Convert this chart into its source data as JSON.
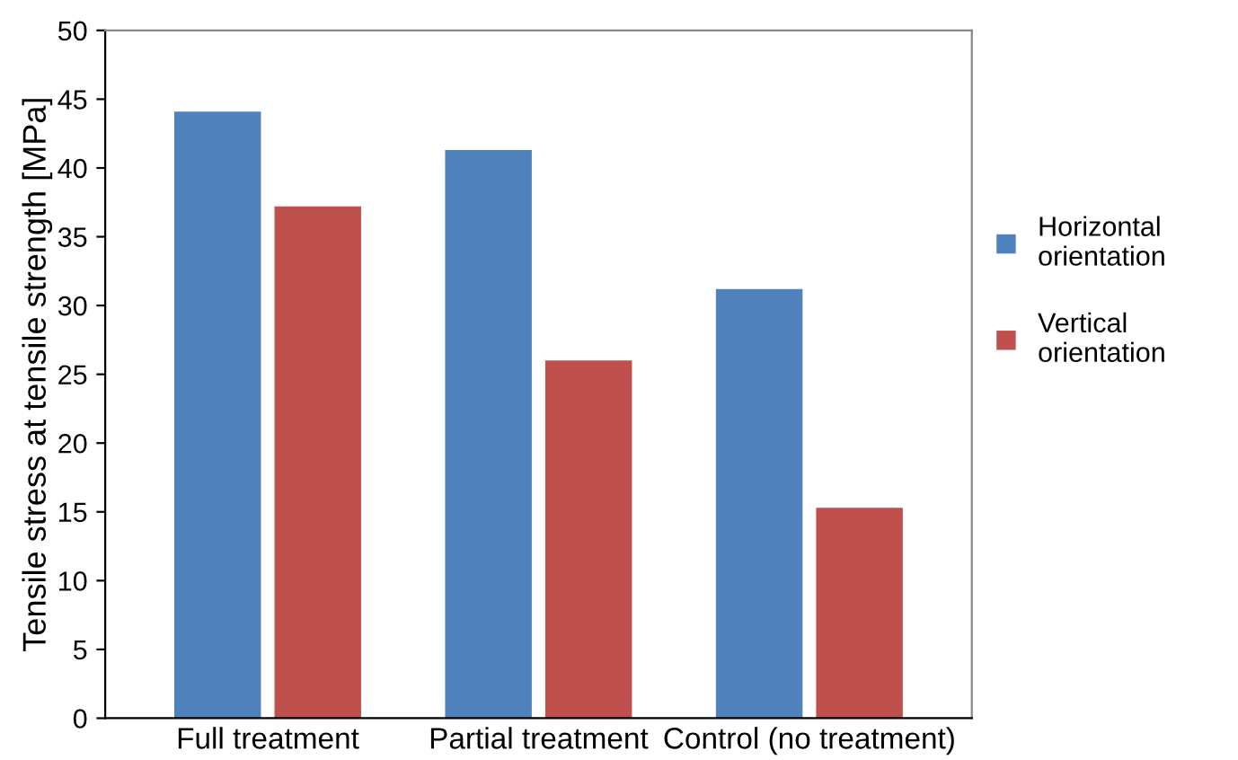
{
  "chart_data": {
    "type": "bar",
    "ylabel": "Tensile stress at tensile strength [MPa]",
    "categories": [
      "Full treatment",
      "Partial treatment",
      "Control (no treatment)"
    ],
    "series": [
      {
        "name": "Horizontal orientation",
        "color": "#4f81bd",
        "values": [
          44.1,
          41.3,
          31.2
        ]
      },
      {
        "name": "Vertical orientation",
        "color": "#c0504d",
        "values": [
          37.2,
          26.0,
          15.3
        ]
      }
    ],
    "ylim": [
      0,
      50
    ],
    "yticks": [
      0,
      5,
      10,
      15,
      20,
      25,
      30,
      35,
      40,
      45,
      50
    ],
    "grid": false,
    "legend": "right"
  }
}
